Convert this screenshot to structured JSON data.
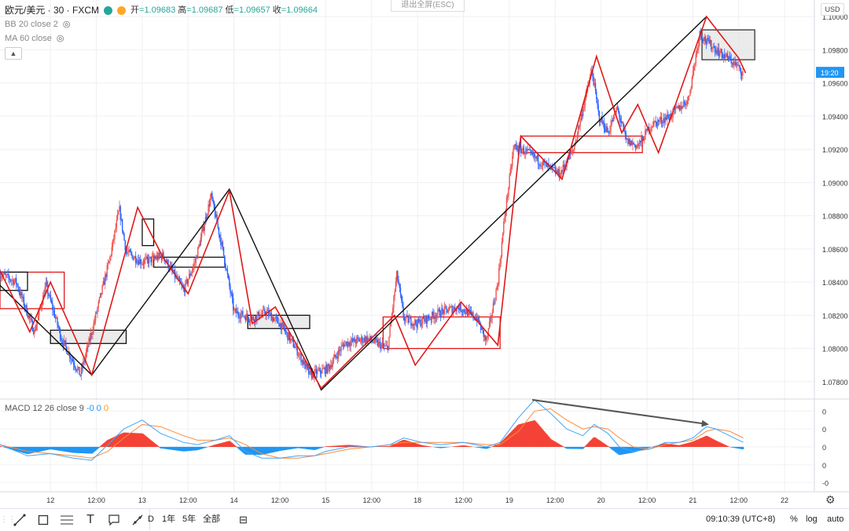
{
  "header": {
    "symbol": "欧元/美元 · 30 · FXCM",
    "ohlc": [
      {
        "label": "开",
        "value": "=1.09683"
      },
      {
        "label": "高",
        "value": "=1.09687"
      },
      {
        "label": "低",
        "value": "=1.09657"
      },
      {
        "label": "收",
        "value": "=1.09664"
      }
    ],
    "indicators": [
      "BB 20 close 2",
      "MA 60 close"
    ],
    "exit_fullscreen": "退出全屏(ESC)",
    "currency": "USD"
  },
  "macd_legend": {
    "label": "MACD 12 26 close 9",
    "v1": "-0",
    "v2": "0",
    "v3": "0"
  },
  "toolbar": {
    "ranges": [
      "D",
      "1年",
      "5年",
      "全部"
    ],
    "clock": "09:10:39 (UTC+8)",
    "percent": "%",
    "log": "log",
    "auto": "auto"
  },
  "colors": {
    "up": "#ef5350",
    "down": "#2962ff",
    "zigzag": "#e01818",
    "trend": "#111111",
    "macd_line": "#42a5f5",
    "signal_line": "#ff8a3d",
    "hist_pos": "#f44336",
    "hist_neg": "#2196f3"
  },
  "chart_data": {
    "type": "candlestick",
    "price_axis": {
      "min": 1.077,
      "max": 1.101,
      "ticks": [
        "1.10000",
        "1.09800",
        "1.09600",
        "1.09400",
        "1.09200",
        "1.09000",
        "1.08800",
        "1.08600",
        "1.08400",
        "1.08200",
        "1.08000",
        "1.07800"
      ],
      "tick_values": [
        1.1,
        1.098,
        1.096,
        1.094,
        1.092,
        1.09,
        1.088,
        1.086,
        1.084,
        1.082,
        1.08,
        1.078
      ],
      "current": {
        "label": "19:20",
        "value": 1.09664
      }
    },
    "time_axis": {
      "labels": [
        "12",
        "12:00",
        "13",
        "12:00",
        "14",
        "12:00",
        "15",
        "12:00",
        "18",
        "12:00",
        "19",
        "12:00",
        "20",
        "12:00",
        "21",
        "12:00",
        "22"
      ],
      "positions": [
        2,
        4,
        6,
        8,
        10,
        12,
        14,
        16,
        18,
        20,
        22,
        24,
        26,
        28,
        30,
        32,
        34
      ],
      "bars_per_unit": 24,
      "start_unit": -0.2,
      "end_unit": 35.3
    },
    "price_path": [
      [
        -0.2,
        1.0845
      ],
      [
        0.5,
        1.084
      ],
      [
        1.3,
        1.081
      ],
      [
        1.8,
        1.0838
      ],
      [
        2.5,
        1.0805
      ],
      [
        3.3,
        1.0784
      ],
      [
        3.8,
        1.081
      ],
      [
        4.6,
        1.0855
      ],
      [
        5.0,
        1.0884
      ],
      [
        5.3,
        1.0858
      ],
      [
        6.0,
        1.0852
      ],
      [
        6.9,
        1.0856
      ],
      [
        7.8,
        1.0835
      ],
      [
        8.3,
        1.0852
      ],
      [
        9.0,
        1.0892
      ],
      [
        9.5,
        1.086
      ],
      [
        10.0,
        1.0822
      ],
      [
        10.8,
        1.0818
      ],
      [
        11.4,
        1.0822
      ],
      [
        12.0,
        1.0815
      ],
      [
        12.7,
        1.08
      ],
      [
        13.3,
        1.0784
      ],
      [
        14.1,
        1.0788
      ],
      [
        14.8,
        1.0803
      ],
      [
        15.8,
        1.0806
      ],
      [
        16.7,
        1.08
      ],
      [
        17.1,
        1.0845
      ],
      [
        17.4,
        1.0818
      ],
      [
        18.0,
        1.0815
      ],
      [
        19.0,
        1.0822
      ],
      [
        19.8,
        1.0825
      ],
      [
        20.6,
        1.0818
      ],
      [
        21.0,
        1.0804
      ],
      [
        21.5,
        1.084
      ],
      [
        21.8,
        1.088
      ],
      [
        22.2,
        1.0922
      ],
      [
        22.8,
        1.0918
      ],
      [
        23.6,
        1.091
      ],
      [
        24.2,
        1.0905
      ],
      [
        24.8,
        1.092
      ],
      [
        25.3,
        1.095
      ],
      [
        25.6,
        1.0968
      ],
      [
        25.9,
        1.094
      ],
      [
        26.3,
        1.093
      ],
      [
        26.7,
        1.0945
      ],
      [
        27.1,
        1.0925
      ],
      [
        27.6,
        1.0922
      ],
      [
        28.2,
        1.0935
      ],
      [
        29.0,
        1.094
      ],
      [
        29.8,
        1.095
      ],
      [
        30.3,
        1.099
      ],
      [
        30.6,
        1.0985
      ],
      [
        31.2,
        1.0978
      ],
      [
        31.8,
        1.0972
      ],
      [
        32.2,
        1.0966
      ]
    ],
    "zigzag": [
      [
        -0.2,
        1.0847
      ],
      [
        1.1,
        1.081
      ],
      [
        2.0,
        1.084
      ],
      [
        3.8,
        1.0784
      ],
      [
        5.8,
        1.0885
      ],
      [
        6.9,
        1.0855
      ],
      [
        8.0,
        1.0833
      ],
      [
        9.8,
        1.0895
      ],
      [
        10.8,
        1.0815
      ],
      [
        11.8,
        1.0825
      ],
      [
        13.8,
        1.0776
      ],
      [
        17.0,
        1.082
      ],
      [
        17.9,
        1.079
      ],
      [
        19.9,
        1.0828
      ],
      [
        21.5,
        1.0802
      ],
      [
        22.5,
        1.0928
      ],
      [
        24.3,
        1.0902
      ],
      [
        25.8,
        1.0976
      ],
      [
        26.9,
        1.093
      ],
      [
        27.6,
        1.0947
      ],
      [
        28.5,
        1.0918
      ],
      [
        30.6,
        1.1
      ],
      [
        32.0,
        1.0975
      ],
      [
        32.3,
        1.0966
      ]
    ],
    "trend_line": [
      [
        -0.2,
        1.0838
      ],
      [
        3.8,
        1.0784
      ],
      [
        9.8,
        1.0896
      ],
      [
        13.8,
        1.0775
      ],
      [
        30.6,
        1.1
      ]
    ],
    "boxes": [
      {
        "x0": -0.2,
        "x1": 2.6,
        "y0": 1.0824,
        "y1": 1.0846,
        "border": "#e01818",
        "fill": "none"
      },
      {
        "x0": -0.2,
        "x1": 1.0,
        "y0": 1.0835,
        "y1": 1.0846,
        "border": "#111111",
        "fill": "none"
      },
      {
        "x0": 2.0,
        "x1": 5.3,
        "y0": 1.0803,
        "y1": 1.0811,
        "border": "#111111",
        "fill": "#e6e6e6"
      },
      {
        "x0": 6.0,
        "x1": 6.5,
        "y0": 1.0862,
        "y1": 1.0878,
        "border": "#111111",
        "fill": "none"
      },
      {
        "x0": 6.5,
        "x1": 9.6,
        "y0": 1.0849,
        "y1": 1.0855,
        "border": "#111111",
        "fill": "none"
      },
      {
        "x0": 10.6,
        "x1": 13.3,
        "y0": 1.0812,
        "y1": 1.082,
        "border": "#111111",
        "fill": "#e6e6e6"
      },
      {
        "x0": 16.5,
        "x1": 21.6,
        "y0": 1.08,
        "y1": 1.0819,
        "border": "#e01818",
        "fill": "none"
      },
      {
        "x0": 22.5,
        "x1": 27.8,
        "y0": 1.0918,
        "y1": 1.0928,
        "border": "#e01818",
        "fill": "none"
      },
      {
        "x0": 30.4,
        "x1": 32.7,
        "y0": 1.0974,
        "y1": 1.0992,
        "border": "#333333",
        "fill": "#e6e6e6"
      }
    ],
    "macd_axis": {
      "ticks": [
        "0",
        "0",
        "0",
        "0",
        "-0"
      ],
      "tick_values": [
        0.0016,
        0.0008,
        0.0,
        -0.0008,
        -0.0016
      ],
      "min": -0.002,
      "max": 0.0021
    },
    "macd_path": [
      [
        -0.2,
        0.0001
      ],
      [
        1.0,
        -0.0004
      ],
      [
        2.0,
        -0.0003
      ],
      [
        3.0,
        -0.0005
      ],
      [
        3.8,
        -0.0006
      ],
      [
        4.5,
        0.0001
      ],
      [
        5.2,
        0.0008
      ],
      [
        6.0,
        0.0012
      ],
      [
        6.8,
        0.0006
      ],
      [
        7.8,
        0.0002
      ],
      [
        8.4,
        0.0001
      ],
      [
        9.2,
        0.0003
      ],
      [
        9.8,
        0.0005
      ],
      [
        10.5,
        -0.0002
      ],
      [
        11.2,
        -0.0005
      ],
      [
        12.0,
        -0.0005
      ],
      [
        12.8,
        -0.0004
      ],
      [
        13.5,
        -0.0004
      ],
      [
        14.0,
        -0.0002
      ],
      [
        15.0,
        0.0
      ],
      [
        16.0,
        0.0
      ],
      [
        16.8,
        0.0001
      ],
      [
        17.4,
        0.0004
      ],
      [
        18.2,
        0.0002
      ],
      [
        19.0,
        0.0001
      ],
      [
        20.0,
        0.0002
      ],
      [
        21.0,
        0.0
      ],
      [
        21.6,
        0.0002
      ],
      [
        22.4,
        0.0013
      ],
      [
        23.1,
        0.0021
      ],
      [
        23.8,
        0.0015
      ],
      [
        24.5,
        0.0008
      ],
      [
        25.2,
        0.0005
      ],
      [
        25.7,
        0.001
      ],
      [
        26.3,
        0.0006
      ],
      [
        26.8,
        0.0
      ],
      [
        27.4,
        -0.0002
      ],
      [
        28.1,
        -0.0001
      ],
      [
        28.8,
        0.0002
      ],
      [
        29.4,
        0.0002
      ],
      [
        30.0,
        0.0004
      ],
      [
        30.6,
        0.0009
      ],
      [
        31.0,
        0.0008
      ],
      [
        31.6,
        0.0005
      ],
      [
        32.2,
        0.0002
      ]
    ],
    "signal_path": [
      [
        -0.2,
        0.0001
      ],
      [
        1.0,
        -0.0002
      ],
      [
        2.0,
        -0.0003
      ],
      [
        3.0,
        -0.0004
      ],
      [
        3.8,
        -0.0005
      ],
      [
        4.5,
        -0.0002
      ],
      [
        5.2,
        0.0004
      ],
      [
        6.0,
        0.001
      ],
      [
        6.8,
        0.0009
      ],
      [
        7.8,
        0.0005
      ],
      [
        8.4,
        0.0003
      ],
      [
        9.2,
        0.0003
      ],
      [
        9.8,
        0.0004
      ],
      [
        10.5,
        0.0001
      ],
      [
        11.2,
        -0.0003
      ],
      [
        12.0,
        -0.0005
      ],
      [
        12.8,
        -0.0005
      ],
      [
        13.5,
        -0.0004
      ],
      [
        14.0,
        -0.0003
      ],
      [
        15.0,
        -0.0001
      ],
      [
        16.0,
        0.0
      ],
      [
        16.8,
        0.0001
      ],
      [
        17.4,
        0.0002
      ],
      [
        18.2,
        0.0002
      ],
      [
        19.0,
        0.0002
      ],
      [
        20.0,
        0.0002
      ],
      [
        21.0,
        0.0001
      ],
      [
        21.6,
        0.0001
      ],
      [
        22.4,
        0.0007
      ],
      [
        23.1,
        0.0016
      ],
      [
        23.8,
        0.0017
      ],
      [
        24.5,
        0.0012
      ],
      [
        25.2,
        0.0008
      ],
      [
        25.7,
        0.0009
      ],
      [
        26.3,
        0.0008
      ],
      [
        26.8,
        0.0004
      ],
      [
        27.4,
        0.0
      ],
      [
        28.1,
        -0.0001
      ],
      [
        28.8,
        0.0001
      ],
      [
        29.4,
        0.0002
      ],
      [
        30.0,
        0.0003
      ],
      [
        30.6,
        0.0007
      ],
      [
        31.0,
        0.0008
      ],
      [
        31.6,
        0.0007
      ],
      [
        32.2,
        0.0004
      ]
    ],
    "divergence_arrow": {
      "from": [
        23.0,
        0.0021
      ],
      "to": [
        30.7,
        0.001
      ]
    }
  }
}
